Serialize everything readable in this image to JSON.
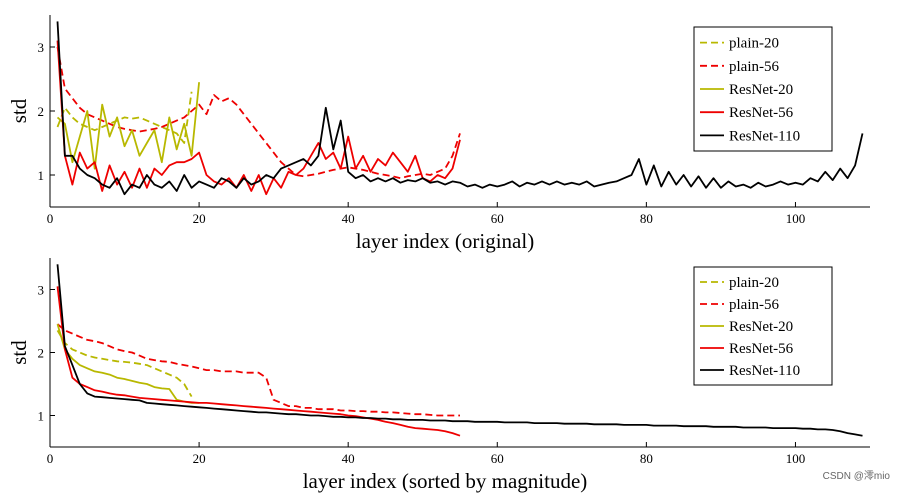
{
  "watermark": "CSDN @澪mio",
  "colors": {
    "plain20": "#b8b800",
    "plain56": "#ee0000",
    "resnet20": "#b8b800",
    "resnet56": "#ee0000",
    "resnet110": "#000000"
  },
  "chart_data": [
    {
      "type": "line",
      "xlabel": "layer index (original)",
      "ylabel": "std",
      "xlim": [
        0,
        110
      ],
      "ylim": [
        0.5,
        3.5
      ],
      "xticks": [
        0,
        20,
        40,
        60,
        80,
        100
      ],
      "yticks": [
        1,
        2,
        3
      ],
      "legend_position": "top-right",
      "series": [
        {
          "name": "plain-20",
          "style": "dashed",
          "color": "#b8b800",
          "values": [
            1.75,
            2.05,
            1.9,
            1.8,
            1.75,
            1.7,
            1.75,
            1.8,
            1.85,
            1.9,
            1.88,
            1.9,
            1.85,
            1.8,
            1.75,
            1.7,
            1.65,
            1.5,
            2.3
          ]
        },
        {
          "name": "plain-56",
          "style": "dashed",
          "color": "#ee0000",
          "values": [
            3.0,
            2.35,
            2.2,
            2.05,
            1.95,
            1.9,
            1.85,
            1.8,
            1.75,
            1.72,
            1.7,
            1.68,
            1.7,
            1.72,
            1.75,
            1.8,
            1.85,
            1.9,
            2.0,
            2.1,
            1.95,
            2.25,
            2.15,
            2.2,
            2.1,
            1.95,
            1.8,
            1.65,
            1.5,
            1.35,
            1.2,
            1.1,
            1.0,
            0.98,
            1.0,
            1.02,
            1.05,
            1.08,
            1.1,
            1.12,
            1.1,
            1.08,
            1.05,
            1.02,
            1.0,
            0.98,
            0.95,
            0.98,
            1.0,
            1.02,
            1.0,
            1.05,
            1.1,
            1.3,
            1.65
          ]
        },
        {
          "name": "ResNet-20",
          "style": "solid",
          "color": "#b8b800",
          "values": [
            1.9,
            1.8,
            1.2,
            1.6,
            2.0,
            1.1,
            2.1,
            1.6,
            1.9,
            1.45,
            1.7,
            1.3,
            1.5,
            1.7,
            1.2,
            1.9,
            1.4,
            1.8,
            1.3,
            2.45
          ]
        },
        {
          "name": "ResNet-56",
          "style": "solid",
          "color": "#ee0000",
          "values": [
            3.1,
            1.3,
            0.85,
            1.35,
            1.1,
            1.2,
            0.75,
            1.15,
            0.85,
            1.05,
            0.8,
            1.1,
            0.8,
            1.1,
            1.0,
            1.15,
            1.2,
            1.2,
            1.25,
            1.35,
            1.0,
            0.9,
            0.85,
            0.95,
            0.8,
            1.0,
            0.75,
            1.0,
            0.7,
            0.95,
            0.8,
            1.05,
            1.0,
            1.1,
            1.3,
            1.5,
            1.25,
            1.35,
            1.1,
            1.6,
            1.1,
            1.3,
            1.05,
            1.25,
            1.15,
            1.35,
            1.2,
            1.05,
            1.3,
            0.95,
            0.9,
            1.0,
            0.95,
            1.1,
            1.55
          ]
        },
        {
          "name": "ResNet-110",
          "style": "solid",
          "color": "#000000",
          "values": [
            3.4,
            1.3,
            1.3,
            1.1,
            1.0,
            0.95,
            0.85,
            0.8,
            0.95,
            0.7,
            0.85,
            0.8,
            1.0,
            0.85,
            0.8,
            0.9,
            0.75,
            1.0,
            0.8,
            0.9,
            0.85,
            0.8,
            0.95,
            0.9,
            0.8,
            0.95,
            0.85,
            0.9,
            1.0,
            0.95,
            1.1,
            1.15,
            1.2,
            1.25,
            1.15,
            1.3,
            2.05,
            1.4,
            1.85,
            1.05,
            0.95,
            1.0,
            0.9,
            0.95,
            0.9,
            0.95,
            0.88,
            0.92,
            0.9,
            0.95,
            0.88,
            0.9,
            0.85,
            0.9,
            0.88,
            0.82,
            0.85,
            0.8,
            0.85,
            0.82,
            0.85,
            0.9,
            0.82,
            0.88,
            0.85,
            0.9,
            0.85,
            0.9,
            0.85,
            0.88,
            0.85,
            0.9,
            0.82,
            0.85,
            0.88,
            0.9,
            0.95,
            1.0,
            1.25,
            0.85,
            1.15,
            0.82,
            1.05,
            0.85,
            1.0,
            0.82,
            0.98,
            0.8,
            0.95,
            0.8,
            0.9,
            0.82,
            0.85,
            0.8,
            0.88,
            0.82,
            0.85,
            0.9,
            0.85,
            0.88,
            0.85,
            0.95,
            0.9,
            1.05,
            0.92,
            1.1,
            0.95,
            1.15,
            1.65
          ]
        }
      ]
    },
    {
      "type": "line",
      "xlabel": "layer index (sorted by magnitude)",
      "ylabel": "std",
      "xlim": [
        0,
        110
      ],
      "ylim": [
        0.5,
        3.5
      ],
      "xticks": [
        0,
        20,
        40,
        60,
        80,
        100
      ],
      "yticks": [
        1,
        2,
        3
      ],
      "legend_position": "top-right",
      "series": [
        {
          "name": "plain-20",
          "style": "dashed",
          "color": "#b8b800",
          "values": [
            2.35,
            2.15,
            2.05,
            2.0,
            1.95,
            1.92,
            1.9,
            1.88,
            1.86,
            1.85,
            1.84,
            1.82,
            1.8,
            1.75,
            1.7,
            1.65,
            1.6,
            1.5,
            1.3
          ]
        },
        {
          "name": "plain-56",
          "style": "dashed",
          "color": "#ee0000",
          "values": [
            2.45,
            2.35,
            2.3,
            2.25,
            2.2,
            2.18,
            2.15,
            2.1,
            2.05,
            2.02,
            2.0,
            1.95,
            1.9,
            1.88,
            1.86,
            1.85,
            1.82,
            1.8,
            1.78,
            1.75,
            1.72,
            1.72,
            1.7,
            1.7,
            1.7,
            1.68,
            1.68,
            1.68,
            1.6,
            1.25,
            1.2,
            1.15,
            1.15,
            1.12,
            1.12,
            1.1,
            1.1,
            1.1,
            1.08,
            1.08,
            1.07,
            1.07,
            1.06,
            1.06,
            1.05,
            1.05,
            1.04,
            1.03,
            1.02,
            1.02,
            1.01,
            1.0,
            1.0,
            1.0,
            1.0
          ]
        },
        {
          "name": "ResNet-20",
          "style": "solid",
          "color": "#b8b800",
          "values": [
            2.45,
            2.05,
            1.9,
            1.8,
            1.75,
            1.7,
            1.68,
            1.65,
            1.6,
            1.58,
            1.55,
            1.52,
            1.5,
            1.45,
            1.43,
            1.42,
            1.25,
            1.22,
            1.2,
            1.2
          ]
        },
        {
          "name": "ResNet-56",
          "style": "solid",
          "color": "#ee0000",
          "values": [
            3.05,
            2.05,
            1.6,
            1.5,
            1.45,
            1.4,
            1.38,
            1.35,
            1.33,
            1.32,
            1.3,
            1.28,
            1.27,
            1.26,
            1.25,
            1.24,
            1.23,
            1.22,
            1.21,
            1.2,
            1.2,
            1.19,
            1.18,
            1.17,
            1.16,
            1.15,
            1.14,
            1.13,
            1.12,
            1.11,
            1.1,
            1.09,
            1.08,
            1.07,
            1.06,
            1.05,
            1.04,
            1.03,
            1.02,
            1.0,
            0.99,
            0.97,
            0.95,
            0.93,
            0.9,
            0.88,
            0.85,
            0.82,
            0.8,
            0.79,
            0.78,
            0.77,
            0.75,
            0.72,
            0.68
          ]
        },
        {
          "name": "ResNet-110",
          "style": "solid",
          "color": "#000000",
          "values": [
            3.4,
            2.1,
            1.8,
            1.5,
            1.35,
            1.3,
            1.29,
            1.28,
            1.27,
            1.26,
            1.25,
            1.24,
            1.2,
            1.19,
            1.18,
            1.17,
            1.16,
            1.15,
            1.14,
            1.13,
            1.12,
            1.11,
            1.1,
            1.09,
            1.08,
            1.07,
            1.06,
            1.05,
            1.05,
            1.04,
            1.03,
            1.02,
            1.02,
            1.01,
            1.0,
            1.0,
            0.99,
            0.98,
            0.98,
            0.97,
            0.97,
            0.96,
            0.96,
            0.95,
            0.95,
            0.94,
            0.94,
            0.93,
            0.93,
            0.93,
            0.92,
            0.92,
            0.92,
            0.91,
            0.91,
            0.91,
            0.9,
            0.9,
            0.9,
            0.9,
            0.89,
            0.89,
            0.89,
            0.89,
            0.88,
            0.88,
            0.88,
            0.88,
            0.87,
            0.87,
            0.87,
            0.87,
            0.86,
            0.86,
            0.86,
            0.86,
            0.85,
            0.85,
            0.85,
            0.85,
            0.84,
            0.84,
            0.84,
            0.84,
            0.83,
            0.83,
            0.83,
            0.83,
            0.82,
            0.82,
            0.82,
            0.82,
            0.81,
            0.81,
            0.81,
            0.81,
            0.8,
            0.8,
            0.8,
            0.8,
            0.79,
            0.79,
            0.78,
            0.78,
            0.77,
            0.75,
            0.72,
            0.7,
            0.68
          ]
        }
      ]
    }
  ]
}
